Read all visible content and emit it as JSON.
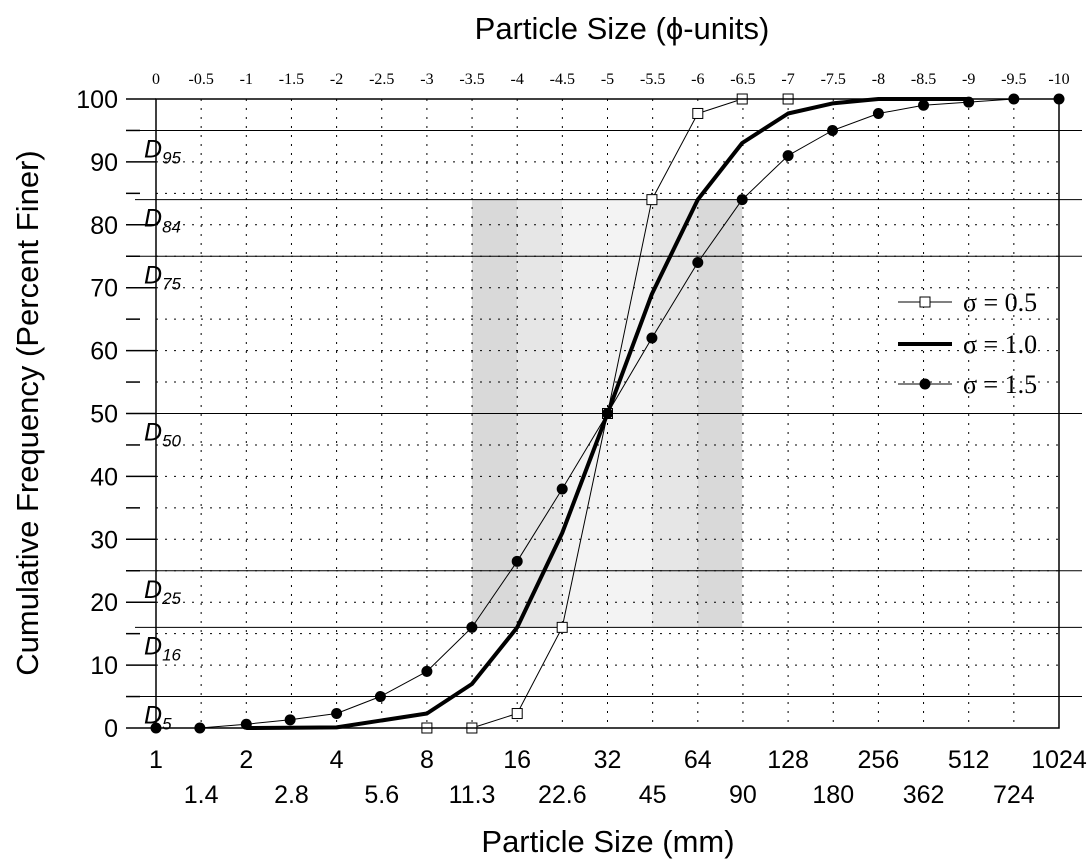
{
  "chart_data": {
    "type": "line",
    "title": "Particle Size (ϕ-units)",
    "xlabel": "Particle Size (mm)",
    "ylabel": "Cumulative Frequency (Percent Finer)",
    "x_scale": "log2",
    "xlim": [
      1,
      1024
    ],
    "ylim": [
      0,
      100
    ],
    "grid": true,
    "legend_position": "right",
    "x_ticks_major": [
      "1",
      "2",
      "4",
      "8",
      "16",
      "32",
      "64",
      "128",
      "256",
      "512",
      "1024"
    ],
    "x_ticks_minor": [
      "1.4",
      "2.8",
      "5.6",
      "11.3",
      "22.6",
      "45",
      "90",
      "180",
      "362",
      "724"
    ],
    "phi_ticks": [
      "0",
      "-0.5",
      "-1",
      "-1.5",
      "-2",
      "-2.5",
      "-3",
      "-3.5",
      "-4",
      "-4.5",
      "-5",
      "-5.5",
      "-6",
      "-6.5",
      "-7",
      "-7.5",
      "-8",
      "-8.5",
      "-9",
      "-9.5",
      "-10"
    ],
    "y_ticks": [
      "0",
      "10",
      "20",
      "30",
      "40",
      "50",
      "60",
      "70",
      "80",
      "90",
      "100"
    ],
    "percentile_lines": [
      {
        "label": "D",
        "sub": "95",
        "value": 95
      },
      {
        "label": "D",
        "sub": "84",
        "value": 84
      },
      {
        "label": "D",
        "sub": "75",
        "value": 75
      },
      {
        "label": "D",
        "sub": "50",
        "value": 50
      },
      {
        "label": "D",
        "sub": "25",
        "value": 25
      },
      {
        "label": "D",
        "sub": "16",
        "value": 16
      },
      {
        "label": "D",
        "sub": "5",
        "value": 5
      }
    ],
    "shaded_bands": [
      {
        "x0": 11.3,
        "x1": 16,
        "y0": 16,
        "y1": 84,
        "color": "#d9d9d9"
      },
      {
        "x0": 16,
        "x1": 22.6,
        "y0": 16,
        "y1": 84,
        "color": "#e6e6e6"
      },
      {
        "x0": 22.6,
        "x1": 45,
        "y0": 16,
        "y1": 84,
        "color": "#f3f3f3"
      },
      {
        "x0": 45,
        "x1": 64,
        "y0": 16,
        "y1": 84,
        "color": "#e6e6e6"
      },
      {
        "x0": 64,
        "x1": 90,
        "y0": 16,
        "y1": 84,
        "color": "#d9d9d9"
      }
    ],
    "series": [
      {
        "name": "σ = 0.5",
        "marker": "open-square",
        "line_width": 1,
        "color": "#000000",
        "x": [
          8,
          11.3,
          16,
          22.6,
          32,
          45,
          64,
          90,
          128
        ],
        "y": [
          0,
          0,
          2.3,
          16,
          50,
          84,
          97.7,
          100,
          100
        ]
      },
      {
        "name": "σ = 1.0",
        "marker": "none",
        "line_width": 4,
        "color": "#000000",
        "x": [
          2,
          4,
          8,
          11.3,
          16,
          22.6,
          32,
          45,
          64,
          90,
          128,
          180,
          256,
          512
        ],
        "y": [
          0,
          0.1,
          2.3,
          7,
          16,
          31,
          50,
          69,
          84,
          93,
          97.7,
          99.3,
          100,
          100
        ]
      },
      {
        "name": "σ = 1.5",
        "marker": "filled-circle",
        "line_width": 1,
        "color": "#000000",
        "x": [
          1,
          1.4,
          2,
          2.8,
          4,
          5.6,
          8,
          11.3,
          16,
          22.6,
          32,
          45,
          64,
          90,
          128,
          180,
          256,
          362,
          512,
          724,
          1024
        ],
        "y": [
          0,
          0,
          0.6,
          1.3,
          2.3,
          5,
          9,
          16,
          26.5,
          38,
          50,
          62,
          74,
          84,
          91,
          95,
          97.7,
          99,
          99.5,
          100,
          100
        ]
      }
    ]
  }
}
